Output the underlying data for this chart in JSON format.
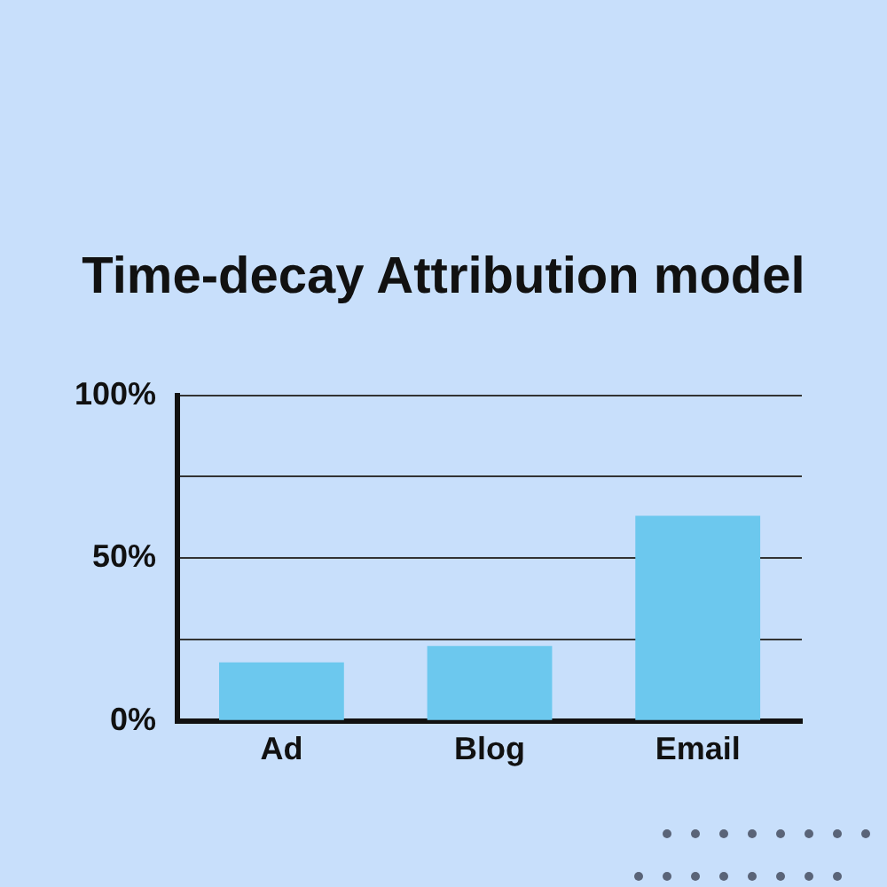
{
  "chart_data": {
    "type": "bar",
    "title": "Time-decay Attribution model",
    "categories": [
      "Ad",
      "Blog",
      "Email"
    ],
    "values": [
      18,
      23,
      63
    ],
    "color": "#6cc8ee",
    "ylim": [
      0,
      100
    ],
    "yticks": [
      {
        "value": 0,
        "label": "0%"
      },
      {
        "value": 25,
        "label": null
      },
      {
        "value": 50,
        "label": "50%"
      },
      {
        "value": 75,
        "label": null
      },
      {
        "value": 100,
        "label": "100%"
      }
    ],
    "grid": "y"
  }
}
